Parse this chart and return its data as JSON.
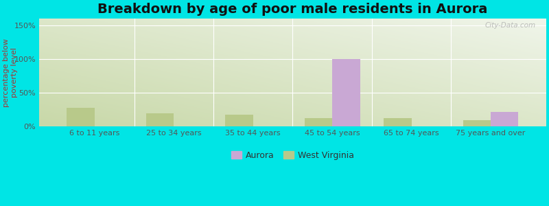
{
  "title": "Breakdown by age of poor male residents in Aurora",
  "categories": [
    "6 to 11 years",
    "25 to 34 years",
    "35 to 44 years",
    "45 to 54 years",
    "65 to 74 years",
    "75 years and over"
  ],
  "aurora_values": [
    0,
    0,
    0,
    100,
    0,
    22
  ],
  "wv_values": [
    28,
    20,
    18,
    13,
    13,
    9
  ],
  "aurora_color": "#c9a8d4",
  "wv_color": "#b8c98a",
  "ylabel": "percentage below\npoverty level",
  "yticks": [
    0,
    50,
    100,
    150
  ],
  "ytick_labels": [
    "0%",
    "50%",
    "100%",
    "150%"
  ],
  "ylim": [
    0,
    160
  ],
  "bar_width": 0.35,
  "bg_color_green": "#c8d8a8",
  "bg_color_white": "#f0f5ea",
  "outer_color": "#00e5e5",
  "title_fontsize": 14,
  "axis_label_fontsize": 8,
  "tick_fontsize": 8,
  "legend_labels": [
    "Aurora",
    "West Virginia"
  ],
  "watermark": "City-Data.com"
}
